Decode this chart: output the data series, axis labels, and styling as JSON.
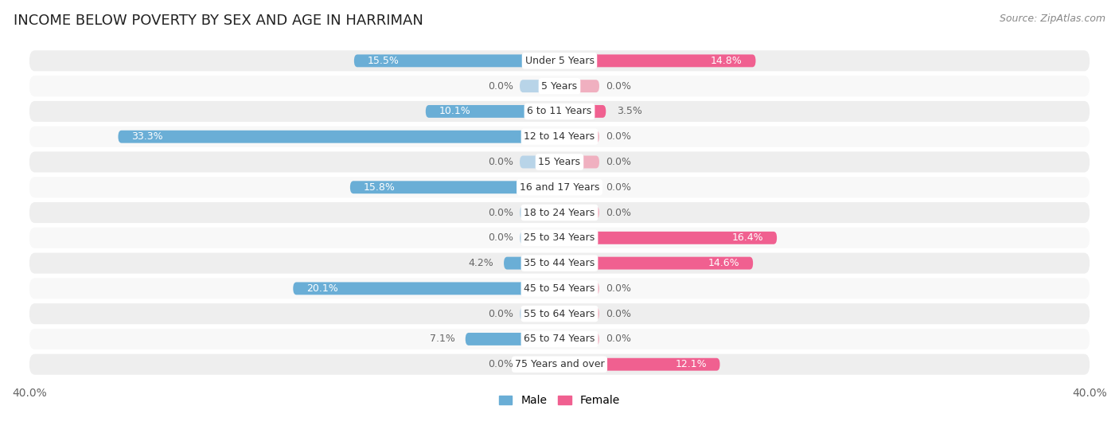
{
  "title": "INCOME BELOW POVERTY BY SEX AND AGE IN HARRIMAN",
  "source": "Source: ZipAtlas.com",
  "categories": [
    "Under 5 Years",
    "5 Years",
    "6 to 11 Years",
    "12 to 14 Years",
    "15 Years",
    "16 and 17 Years",
    "18 to 24 Years",
    "25 to 34 Years",
    "35 to 44 Years",
    "45 to 54 Years",
    "55 to 64 Years",
    "65 to 74 Years",
    "75 Years and over"
  ],
  "male": [
    15.5,
    0.0,
    10.1,
    33.3,
    0.0,
    15.8,
    0.0,
    0.0,
    4.2,
    20.1,
    0.0,
    7.1,
    0.0
  ],
  "female": [
    14.8,
    0.0,
    3.5,
    0.0,
    0.0,
    0.0,
    0.0,
    16.4,
    14.6,
    0.0,
    0.0,
    0.0,
    12.1
  ],
  "male_color_active": "#6aaed6",
  "male_color_zero": "#b8d4e8",
  "female_color_active": "#f06090",
  "female_color_zero": "#f0b0c0",
  "row_bg_odd": "#eeeeee",
  "row_bg_even": "#f8f8f8",
  "xlim": 40.0,
  "bar_height": 0.5,
  "title_fontsize": 13,
  "label_fontsize": 9,
  "value_fontsize": 9,
  "tick_fontsize": 10,
  "source_fontsize": 9
}
